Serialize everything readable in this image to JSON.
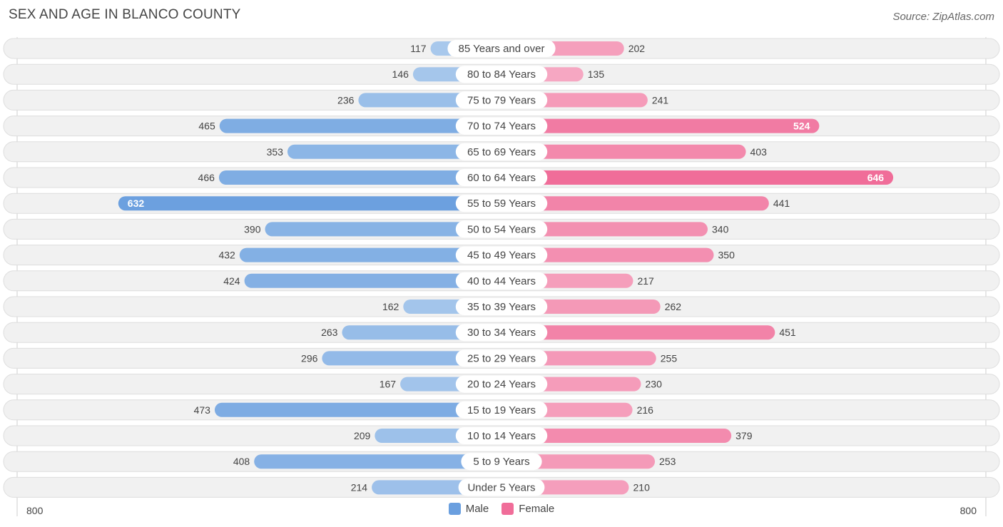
{
  "title": "SEX AND AGE IN BLANCO COUNTY",
  "source": "Source: ZipAtlas.com",
  "colors": {
    "male_light": "#a8c8ec",
    "male_dark": "#6a9fdf",
    "female_light": "#f6a9c3",
    "female_dark": "#f06d99"
  },
  "legend": {
    "male": "Male",
    "female": "Female"
  },
  "axis": {
    "left_label": "800",
    "right_label": "800"
  },
  "chart_data": {
    "type": "bar",
    "orientation": "horizontal-diverging",
    "title": "SEX AND AGE IN BLANCO COUNTY",
    "xlim": [
      -800,
      800
    ],
    "categories": [
      "85 Years and over",
      "80 to 84 Years",
      "75 to 79 Years",
      "70 to 74 Years",
      "65 to 69 Years",
      "60 to 64 Years",
      "55 to 59 Years",
      "50 to 54 Years",
      "45 to 49 Years",
      "40 to 44 Years",
      "35 to 39 Years",
      "30 to 34 Years",
      "25 to 29 Years",
      "20 to 24 Years",
      "15 to 19 Years",
      "10 to 14 Years",
      "5 to 9 Years",
      "Under 5 Years"
    ],
    "series": [
      {
        "name": "Male",
        "values": [
          117,
          146,
          236,
          465,
          353,
          466,
          632,
          390,
          432,
          424,
          162,
          263,
          296,
          167,
          473,
          209,
          408,
          214
        ]
      },
      {
        "name": "Female",
        "values": [
          202,
          135,
          241,
          524,
          403,
          646,
          441,
          340,
          350,
          217,
          262,
          451,
          255,
          230,
          216,
          379,
          253,
          210
        ]
      }
    ],
    "legend_position": "bottom-center"
  }
}
